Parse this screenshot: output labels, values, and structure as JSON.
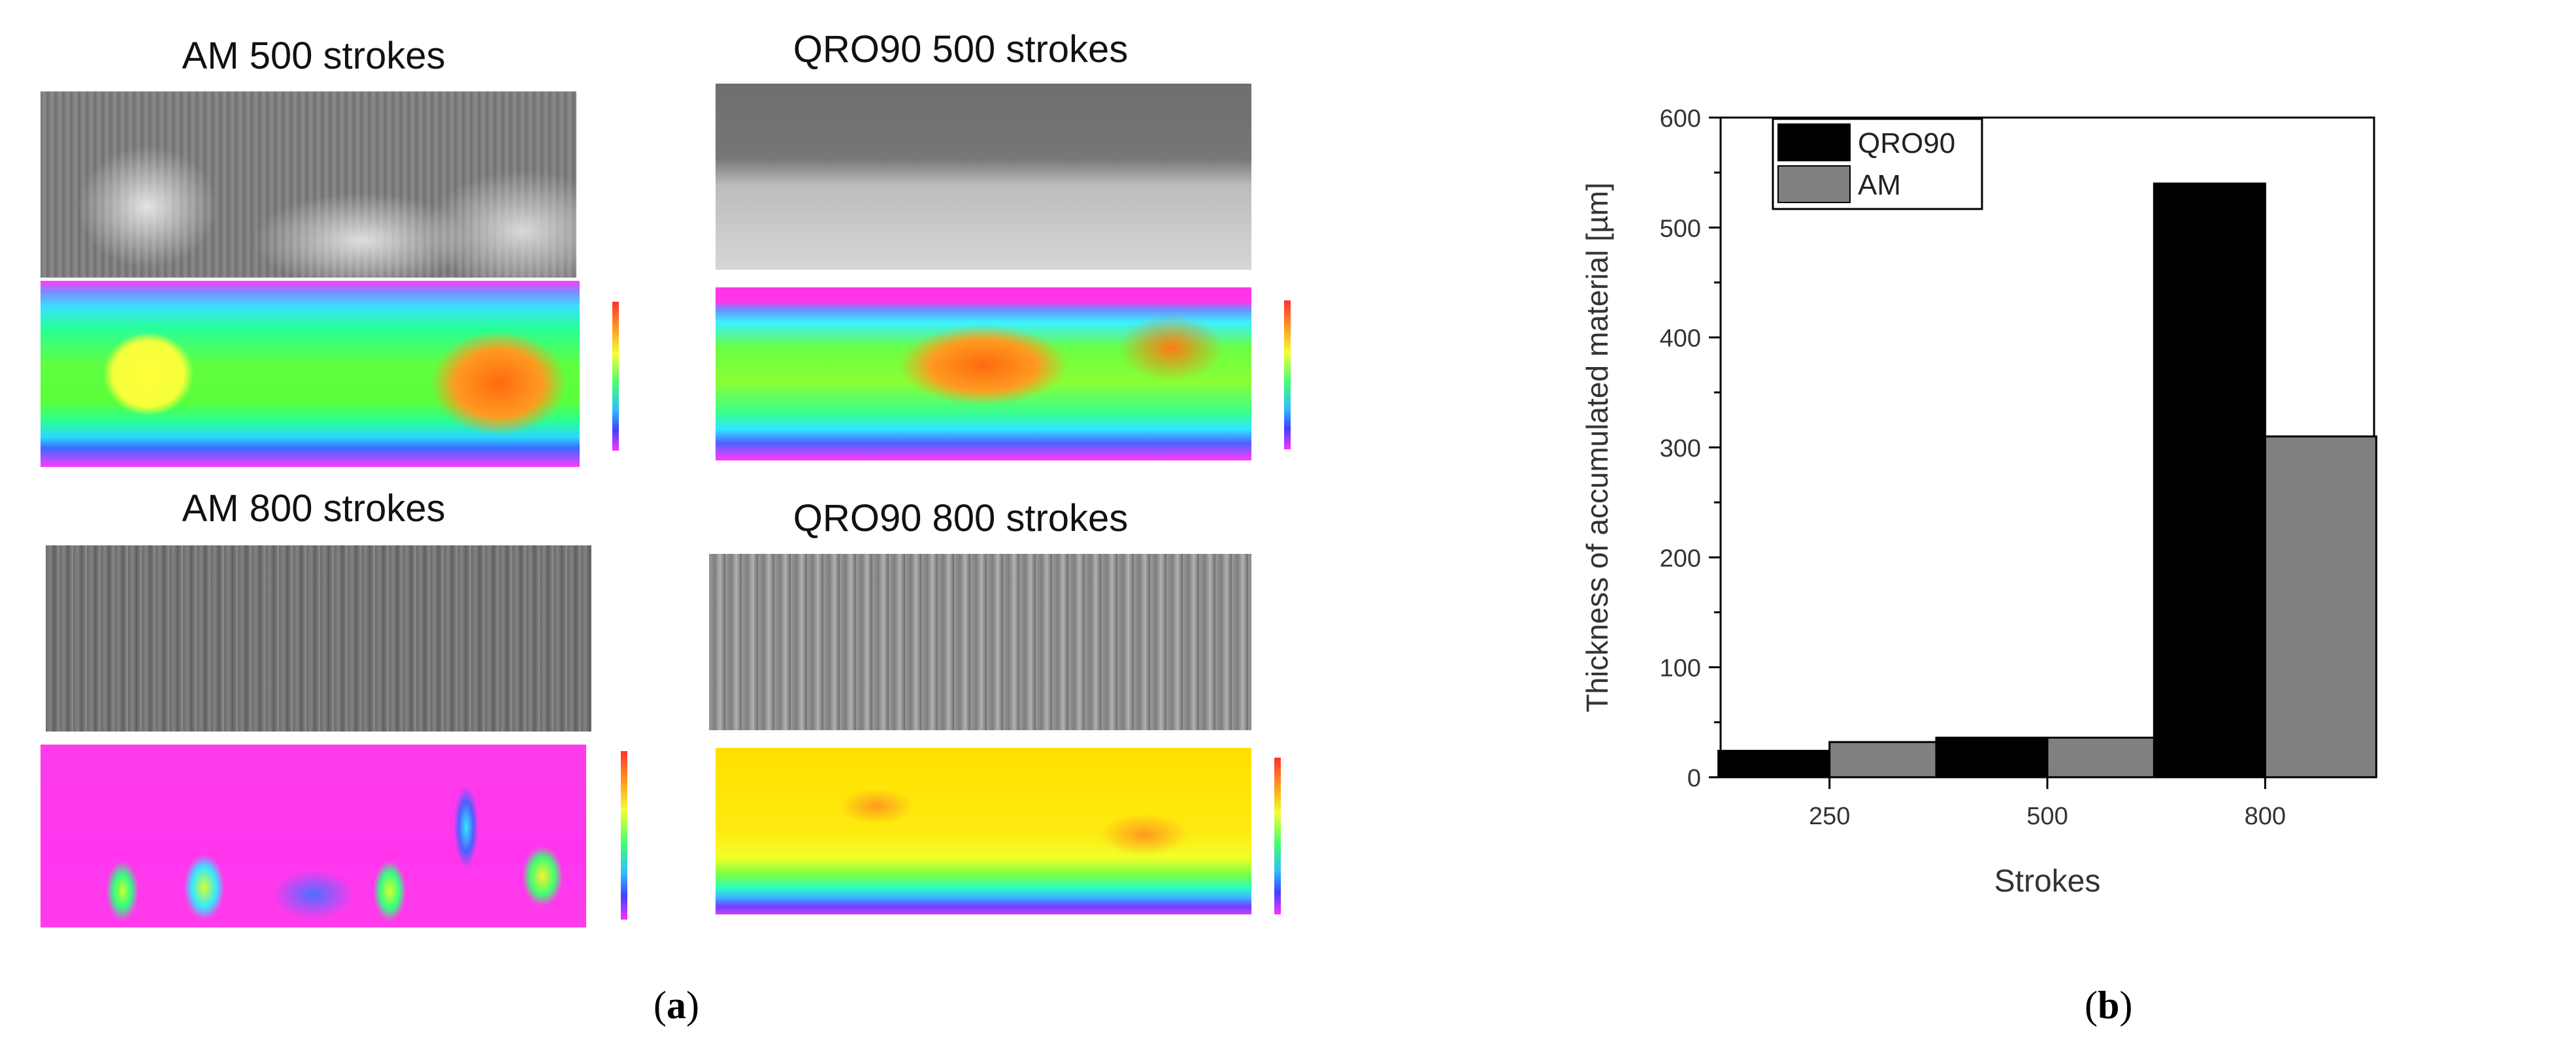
{
  "left_panel": {
    "titles": [
      "AM 500 strokes",
      "QRO90 500 strokes",
      "AM 800 strokes",
      "QRO90 800 strokes"
    ],
    "caption_letter": "a"
  },
  "right_panel": {
    "caption_letter": "b"
  },
  "chart_data": {
    "type": "bar",
    "categories": [
      "250",
      "500",
      "800"
    ],
    "series": [
      {
        "name": "QRO90",
        "values": [
          24,
          36,
          540
        ],
        "color": "#000000"
      },
      {
        "name": "AM",
        "values": [
          32,
          36,
          310
        ],
        "color": "#808080"
      }
    ],
    "xlabel": "Strokes",
    "ylabel": "Thickness of accumulated material [µm]",
    "ylim": [
      0,
      600
    ],
    "yticks": [
      0,
      100,
      200,
      300,
      400,
      500,
      600
    ],
    "legend_placement": "top-left",
    "grid": false
  }
}
